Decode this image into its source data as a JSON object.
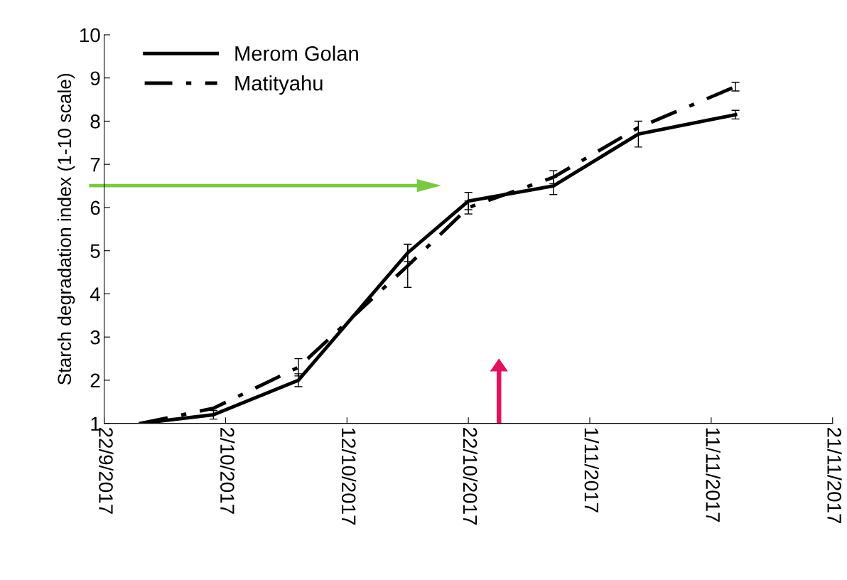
{
  "chart_data": {
    "type": "line",
    "ylabel": "Starch degradation index (1-10 scale)",
    "x": [
      "2017-09-25",
      "2017-10-01",
      "2017-10-08",
      "2017-10-17",
      "2017-10-22",
      "2017-10-29",
      "2017-11-05",
      "2017-11-13"
    ],
    "series": [
      {
        "name": "Merom Golan",
        "color": "#000000",
        "line_style": "solid",
        "values": [
          1.0,
          1.2,
          2.0,
          4.95,
          6.15,
          6.5,
          7.7,
          8.15
        ],
        "errors": [
          null,
          0.1,
          0.15,
          0.2,
          0.2,
          0.2,
          0.3,
          0.1
        ]
      },
      {
        "name": "Matityahu",
        "color": "#000000",
        "line_style": "dashed",
        "values": [
          1.0,
          1.35,
          2.3,
          4.65,
          6.0,
          6.7,
          7.85,
          8.8
        ],
        "errors": [
          null,
          null,
          0.2,
          0.5,
          0.15,
          0.15,
          null,
          0.1
        ]
      }
    ],
    "xlim": [
      "2017-09-22",
      "2017-11-21"
    ],
    "xticks": [
      {
        "value": "2017-09-22",
        "label": "22/9/2017"
      },
      {
        "value": "2017-10-02",
        "label": "2/10/2017"
      },
      {
        "value": "2017-10-12",
        "label": "12/10/2017"
      },
      {
        "value": "2017-10-22",
        "label": "22/10/2017"
      },
      {
        "value": "2017-11-01",
        "label": "1/11/2017"
      },
      {
        "value": "2017-11-11",
        "label": "11/11/2017"
      },
      {
        "value": "2017-11-21",
        "label": "21/11/2017"
      }
    ],
    "ylim": [
      1,
      10
    ],
    "yticks": [
      1,
      2,
      3,
      4,
      5,
      6,
      7,
      8,
      9,
      10
    ],
    "grid": false,
    "legend": "top left",
    "marker": "none"
  }
}
